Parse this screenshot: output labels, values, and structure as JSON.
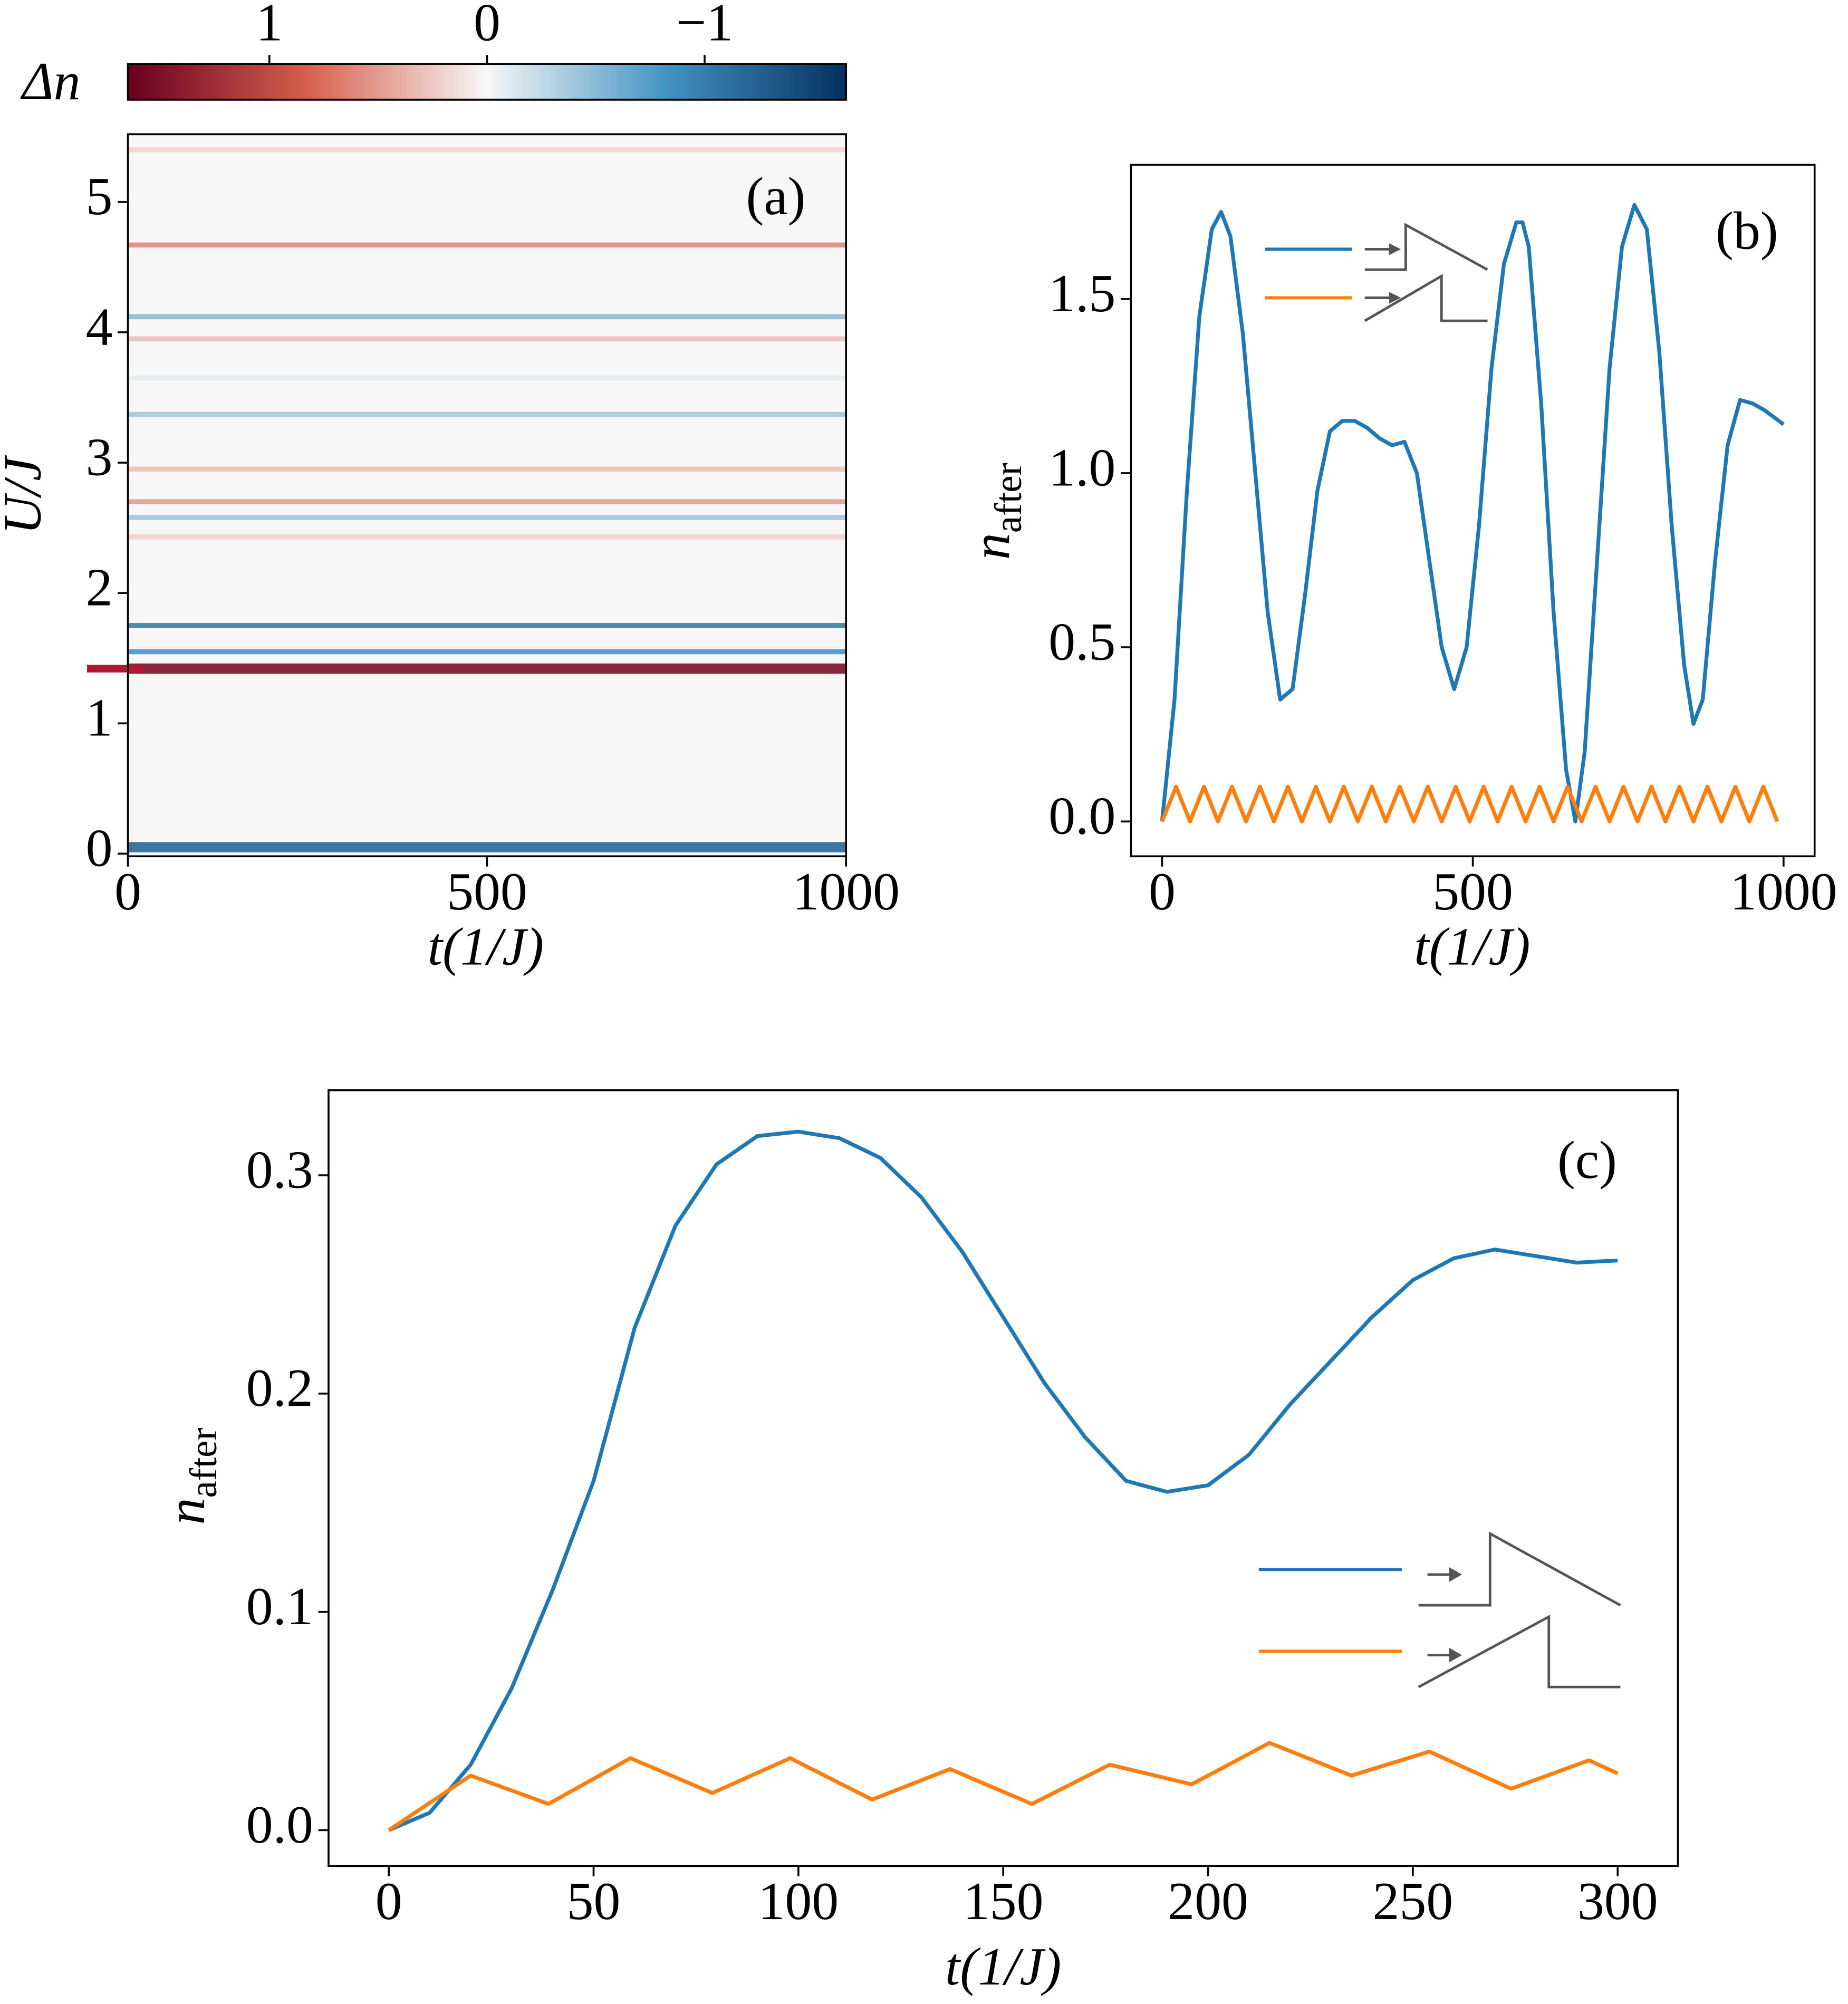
{
  "chart_data": [
    {
      "type": "heatmap",
      "panel_label": "(a)",
      "xlabel": "t(1/J)",
      "ylabel": "U/J",
      "xlim": [
        0,
        1000
      ],
      "ylim": [
        -0.02,
        5.52
      ],
      "xticks": [
        0,
        500,
        1000
      ],
      "yticks": [
        0,
        1,
        2,
        3,
        4,
        5
      ],
      "colorbar_label": "Δn",
      "clim": [
        1.65,
        -1.65
      ],
      "cticks": [
        1,
        0,
        {
          "value": -1,
          "label": "−1"
        }
      ],
      "y": [
        0.05,
        1.42,
        1.55,
        1.75,
        2.43,
        2.58,
        2.7,
        2.95,
        3.37,
        3.65,
        3.95,
        4.12,
        4.67,
        5.4
      ],
      "values": [
        -1.2,
        1.5,
        -0.8,
        -1.0,
        0.2,
        -0.4,
        0.5,
        0.3,
        -0.4,
        -0.1,
        0.3,
        -0.5,
        0.6,
        0.2
      ],
      "marker": 1.42,
      "marker_color": "#b2182b"
    },
    {
      "type": "line",
      "panel_label": "(b)",
      "xlabel": "t(1/J)",
      "ylabel": "n",
      "ylabel_subscript": "after",
      "xlim": [
        -50,
        1050
      ],
      "ylim": [
        -0.1,
        1.885
      ],
      "xticks": [
        0,
        500,
        1000
      ],
      "yticks": [
        {
          "value": 0,
          "label": "0.0"
        },
        {
          "value": 0.5,
          "label": "0.5"
        },
        {
          "value": 1,
          "label": "1.0"
        },
        {
          "value": 1.5,
          "label": "1.5"
        }
      ],
      "series": [
        {
          "color": "#1f77b4",
          "x": [
            0,
            20,
            40,
            60,
            80,
            95,
            110,
            130,
            150,
            170,
            190,
            210,
            230,
            250,
            270,
            290,
            310,
            330,
            350,
            370,
            390,
            410,
            430,
            450,
            470,
            490,
            510,
            530,
            550,
            570,
            580,
            590,
            610,
            630,
            650,
            665,
            680,
            700,
            720,
            740,
            760,
            780,
            800,
            820,
            840,
            855,
            870,
            890,
            910,
            930,
            950,
            970,
            1000
          ],
          "values": [
            0.0,
            0.35,
            0.95,
            1.45,
            1.7,
            1.75,
            1.68,
            1.4,
            1.0,
            0.6,
            0.35,
            0.38,
            0.65,
            0.95,
            1.12,
            1.15,
            1.15,
            1.13,
            1.1,
            1.08,
            1.09,
            1.0,
            0.75,
            0.5,
            0.38,
            0.5,
            0.85,
            1.3,
            1.6,
            1.72,
            1.72,
            1.65,
            1.2,
            0.6,
            0.15,
            0.0,
            0.2,
            0.75,
            1.3,
            1.65,
            1.77,
            1.7,
            1.35,
            0.85,
            0.45,
            0.28,
            0.35,
            0.75,
            1.08,
            1.21,
            1.2,
            1.18,
            1.14
          ]
        },
        {
          "color": "#ff7f0e",
          "x": [
            0,
            22.5,
            45,
            67.5,
            90,
            112.5,
            135,
            157.5,
            180,
            202.5,
            225,
            247.5,
            270,
            292.5,
            315,
            337.5,
            360,
            382.5,
            405,
            427.5,
            450,
            472.5,
            495,
            517.5,
            540,
            562.5,
            585,
            607.5,
            630,
            652.5,
            675,
            697.5,
            720,
            742.5,
            765,
            787.5,
            810,
            832.5,
            855,
            877.5,
            900,
            922.5,
            945,
            967.5,
            990
          ],
          "values": [
            0,
            0.1,
            0,
            0.1,
            0,
            0.1,
            0,
            0.1,
            0,
            0.1,
            0,
            0.1,
            0,
            0.1,
            0,
            0.1,
            0,
            0.1,
            0,
            0.1,
            0,
            0.1,
            0,
            0.1,
            0,
            0.1,
            0,
            0.1,
            0,
            0.1,
            0,
            0.1,
            0,
            0.1,
            0,
            0.1,
            0,
            0.1,
            0,
            0.1,
            0,
            0.1,
            0,
            0.1,
            0
          ]
        }
      ]
    },
    {
      "type": "line",
      "panel_label": "(c)",
      "xlabel": "t(1/J)",
      "ylabel": "n",
      "ylabel_subscript": "after",
      "xlim": [
        -14.7,
        314.7
      ],
      "ylim": [
        -0.0164,
        0.339
      ],
      "xticks": [
        0,
        50,
        100,
        150,
        200,
        250,
        300
      ],
      "yticks": [
        {
          "value": 0,
          "label": "0.0"
        },
        {
          "value": 0.1,
          "label": "0.1"
        },
        {
          "value": 0.2,
          "label": "0.2"
        },
        {
          "value": 0.3,
          "label": "0.3"
        }
      ],
      "series": [
        {
          "color": "#1f77b4",
          "x": [
            0,
            10,
            20,
            30,
            40,
            50,
            60,
            70,
            80,
            90,
            100,
            110,
            120,
            130,
            140,
            150,
            160,
            170,
            180,
            190,
            200,
            210,
            220,
            230,
            240,
            250,
            260,
            270,
            280,
            290,
            300
          ],
          "values": [
            0,
            0.008,
            0.03,
            0.065,
            0.11,
            0.16,
            0.23,
            0.277,
            0.305,
            0.318,
            0.32,
            0.317,
            0.308,
            0.29,
            0.265,
            0.235,
            0.205,
            0.18,
            0.16,
            0.155,
            0.158,
            0.172,
            0.195,
            0.215,
            0.235,
            0.252,
            0.262,
            0.266,
            0.263,
            0.26,
            0.261
          ]
        },
        {
          "color": "#ff7f0e",
          "x": [
            0,
            20,
            39,
            59,
            79,
            98,
            118,
            137,
            157,
            176,
            196,
            215,
            235,
            254,
            274,
            293,
            300
          ],
          "values": [
            0,
            0.025,
            0.012,
            0.033,
            0.017,
            0.033,
            0.014,
            0.028,
            0.012,
            0.03,
            0.021,
            0.04,
            0.025,
            0.036,
            0.019,
            0.032,
            0.026
          ]
        }
      ]
    }
  ]
}
